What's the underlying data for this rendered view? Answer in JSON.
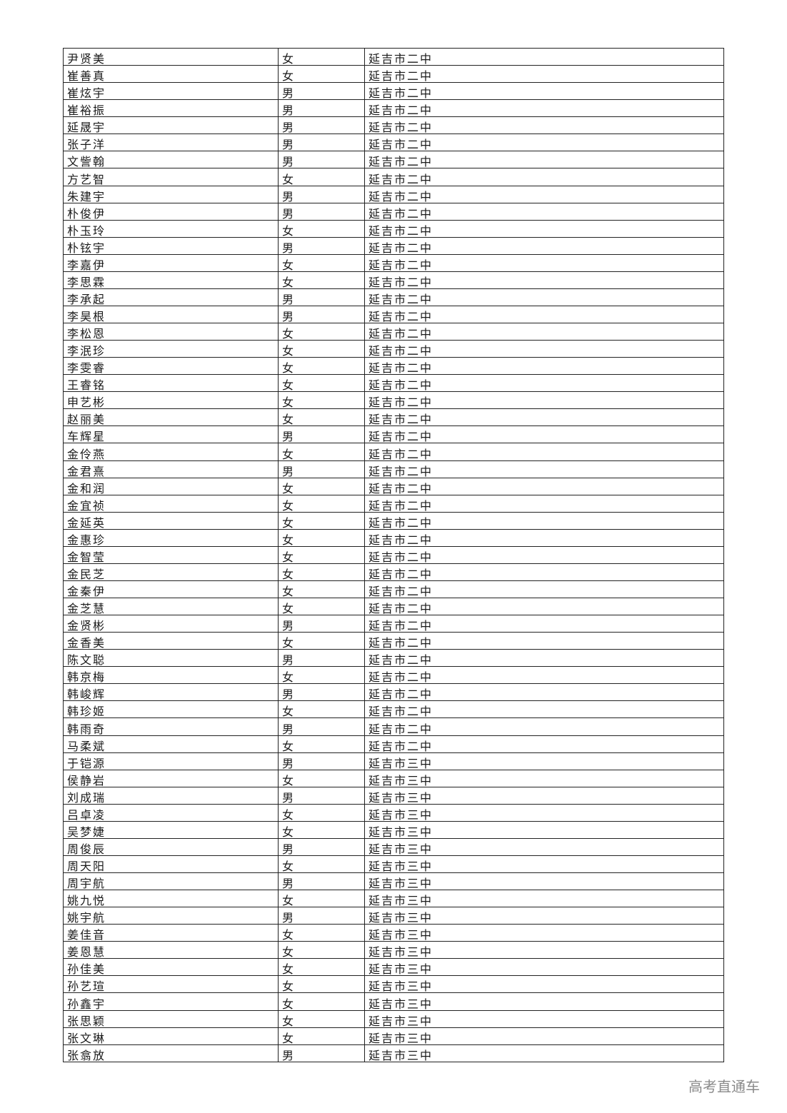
{
  "rows": [
    [
      "尹贤美",
      "女",
      "延吉市二中"
    ],
    [
      "崔善真",
      "女",
      "延吉市二中"
    ],
    [
      "崔炫宇",
      "男",
      "延吉市二中"
    ],
    [
      "崔裕振",
      "男",
      "延吉市二中"
    ],
    [
      "延晟宇",
      "男",
      "延吉市二中"
    ],
    [
      "张子洋",
      "男",
      "延吉市二中"
    ],
    [
      "文訾翰",
      "男",
      "延吉市二中"
    ],
    [
      "方艺智",
      "女",
      "延吉市二中"
    ],
    [
      "朱建宇",
      "男",
      "延吉市二中"
    ],
    [
      "朴俊伊",
      "男",
      "延吉市二中"
    ],
    [
      "朴玉玲",
      "女",
      "延吉市二中"
    ],
    [
      "朴铉宇",
      "男",
      "延吉市二中"
    ],
    [
      "李嘉伊",
      "女",
      "延吉市二中"
    ],
    [
      "李思霖",
      "女",
      "延吉市二中"
    ],
    [
      "李承起",
      "男",
      "延吉市二中"
    ],
    [
      "李昊根",
      "男",
      "延吉市二中"
    ],
    [
      "李松恩",
      "女",
      "延吉市二中"
    ],
    [
      "李泯珍",
      "女",
      "延吉市二中"
    ],
    [
      "李雯睿",
      "女",
      "延吉市二中"
    ],
    [
      "王睿铭",
      "女",
      "延吉市二中"
    ],
    [
      "申艺彬",
      "女",
      "延吉市二中"
    ],
    [
      "赵丽美",
      "女",
      "延吉市二中"
    ],
    [
      "车辉星",
      "男",
      "延吉市二中"
    ],
    [
      "金伶燕",
      "女",
      "延吉市二中"
    ],
    [
      "金君熹",
      "男",
      "延吉市二中"
    ],
    [
      "金和润",
      "女",
      "延吉市二中"
    ],
    [
      "金宜祯",
      "女",
      "延吉市二中"
    ],
    [
      "金延英",
      "女",
      "延吉市二中"
    ],
    [
      "金惠珍",
      "女",
      "延吉市二中"
    ],
    [
      "金智莹",
      "女",
      "延吉市二中"
    ],
    [
      "金民芝",
      "女",
      "延吉市二中"
    ],
    [
      "金秦伊",
      "女",
      "延吉市二中"
    ],
    [
      "金芝慧",
      "女",
      "延吉市二中"
    ],
    [
      "金贤彬",
      "男",
      "延吉市二中"
    ],
    [
      "金香美",
      "女",
      "延吉市二中"
    ],
    [
      "陈文聪",
      "男",
      "延吉市二中"
    ],
    [
      "韩京梅",
      "女",
      "延吉市二中"
    ],
    [
      "韩峻辉",
      "男",
      "延吉市二中"
    ],
    [
      "韩珍姬",
      "女",
      "延吉市二中"
    ],
    [
      "韩雨奇",
      "男",
      "延吉市二中"
    ],
    [
      "马柔斌",
      "女",
      "延吉市二中"
    ],
    [
      "于铠源",
      "男",
      "延吉市三中"
    ],
    [
      "侯静岩",
      "女",
      "延吉市三中"
    ],
    [
      "刘成瑞",
      "男",
      "延吉市三中"
    ],
    [
      "吕卓凌",
      "女",
      "延吉市三中"
    ],
    [
      "吴梦婕",
      "女",
      "延吉市三中"
    ],
    [
      "周俊辰",
      "男",
      "延吉市三中"
    ],
    [
      "周天阳",
      "女",
      "延吉市三中"
    ],
    [
      "周宇航",
      "男",
      "延吉市三中"
    ],
    [
      "姚九悦",
      "女",
      "延吉市三中"
    ],
    [
      "姚宇航",
      "男",
      "延吉市三中"
    ],
    [
      "姜佳音",
      "女",
      "延吉市三中"
    ],
    [
      "姜恩慧",
      "女",
      "延吉市三中"
    ],
    [
      "孙佳美",
      "女",
      "延吉市三中"
    ],
    [
      "孙艺瑄",
      "女",
      "延吉市三中"
    ],
    [
      "孙鑫宇",
      "女",
      "延吉市三中"
    ],
    [
      "张思颖",
      "女",
      "延吉市三中"
    ],
    [
      "张文琳",
      "女",
      "延吉市三中"
    ],
    [
      "张翕放",
      "男",
      "延吉市三中"
    ]
  ],
  "watermark": "高考直通车"
}
